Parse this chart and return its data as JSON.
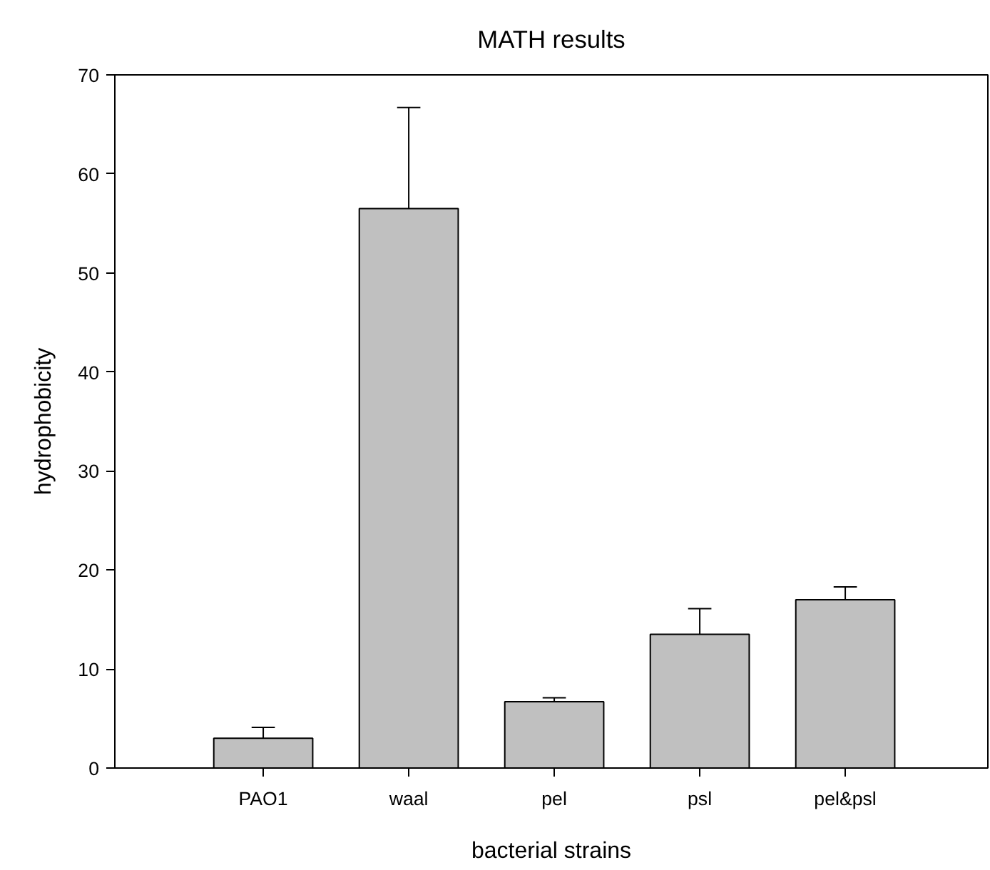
{
  "chart_data": {
    "type": "bar",
    "title": "MATH results",
    "xlabel": "bacterial strains",
    "ylabel": "hydrophobicity",
    "categories": [
      "PAO1",
      "waal",
      "pel",
      "psl",
      "pel&psl"
    ],
    "values": [
      3.0,
      56.5,
      6.7,
      13.5,
      17.0
    ],
    "errors": [
      [
        3.0,
        4.1
      ],
      [
        56.5,
        66.7
      ],
      [
        6.7,
        7.1
      ],
      [
        13.5,
        16.1
      ],
      [
        17.0,
        18.3
      ]
    ],
    "color": "#c0c0c0",
    "ylim": [
      0,
      70
    ],
    "yticks": [
      0,
      10,
      20,
      30,
      40,
      50,
      60,
      70
    ],
    "grid": false
  }
}
